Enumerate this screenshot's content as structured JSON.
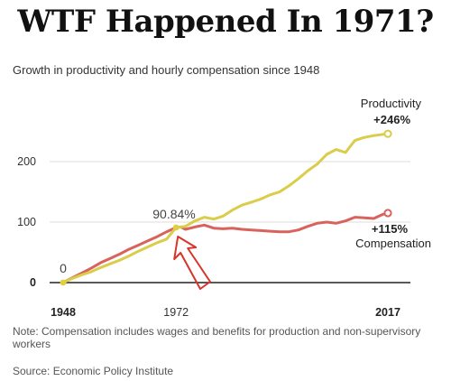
{
  "headline": "WTF Happened In 1971?",
  "chart_data": {
    "type": "line",
    "title": "Growth in productivity and hourly compensation since 1948",
    "xlim": [
      1948,
      2017
    ],
    "ylim": [
      0,
      260
    ],
    "x_ticks": [
      "1948",
      "1972",
      "2017"
    ],
    "x_ticks_bold": [
      "1948",
      "2017"
    ],
    "y_ticks": [
      0,
      100,
      200
    ],
    "grid": true,
    "series": [
      {
        "name": "Productivity",
        "color": "#d9cd4a",
        "end_label": "+246%",
        "x": [
          1948,
          1950,
          1952,
          1954,
          1956,
          1958,
          1960,
          1962,
          1964,
          1966,
          1968,
          1970,
          1972,
          1974,
          1976,
          1978,
          1980,
          1982,
          1984,
          1986,
          1988,
          1990,
          1992,
          1994,
          1996,
          1998,
          2000,
          2002,
          2004,
          2006,
          2008,
          2010,
          2012,
          2014,
          2016,
          2017
        ],
        "values": [
          0,
          7,
          13,
          18,
          25,
          31,
          37,
          44,
          52,
          59,
          66,
          72,
          91,
          93,
          102,
          108,
          105,
          110,
          120,
          128,
          133,
          138,
          145,
          150,
          160,
          172,
          185,
          196,
          212,
          220,
          215,
          235,
          240,
          243,
          245,
          246
        ]
      },
      {
        "name": "Compensation",
        "color": "#d9625c",
        "end_label": "+115%",
        "x": [
          1948,
          1950,
          1952,
          1954,
          1956,
          1958,
          1960,
          1962,
          1964,
          1966,
          1968,
          1970,
          1972,
          1973,
          1974,
          1976,
          1978,
          1980,
          1982,
          1984,
          1986,
          1988,
          1990,
          1992,
          1994,
          1996,
          1998,
          2000,
          2002,
          2004,
          2006,
          2008,
          2010,
          2012,
          2014,
          2016,
          2017
        ],
        "values": [
          0,
          8,
          16,
          24,
          33,
          40,
          47,
          55,
          62,
          69,
          76,
          84,
          91,
          92,
          88,
          92,
          95,
          90,
          89,
          90,
          88,
          87,
          86,
          85,
          84,
          84,
          87,
          93,
          98,
          100,
          98,
          102,
          108,
          107,
          106,
          113,
          115
        ]
      }
    ],
    "annotations": [
      {
        "text": "0",
        "x": 1948,
        "y": 0
      },
      {
        "text": "90.84%",
        "x": 1972,
        "y": 91
      }
    ]
  },
  "note": "Note: Compensation includes wages and benefits for production and non-supervisory workers",
  "source": "Source: Economic Policy Institute"
}
